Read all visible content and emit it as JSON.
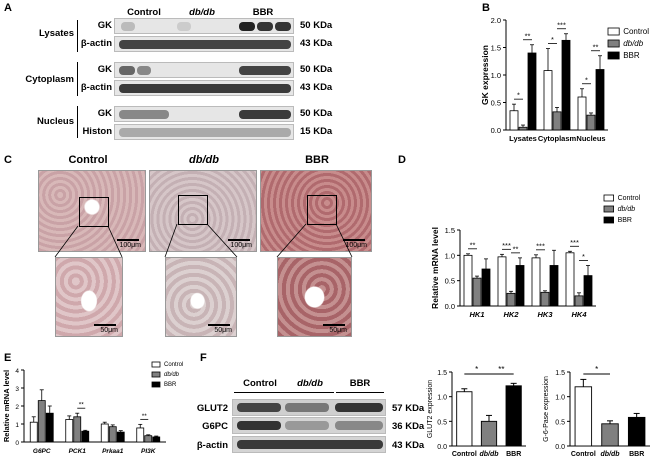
{
  "panel_letters": [
    "A",
    "B",
    "C",
    "D",
    "E",
    "F"
  ],
  "panelA": {
    "groups": [
      "Control",
      "db/db",
      "BBR"
    ],
    "sections": [
      {
        "name": "Lysates",
        "rows": [
          {
            "label": "GK",
            "mw": "50 KDa"
          },
          {
            "label": "β-actin",
            "mw": "43 KDa"
          }
        ]
      },
      {
        "name": "Cytoplasm",
        "rows": [
          {
            "label": "GK",
            "mw": "50 KDa"
          },
          {
            "label": "β-actin",
            "mw": "43 KDa"
          }
        ]
      },
      {
        "name": "Nucleus",
        "rows": [
          {
            "label": "GK",
            "mw": "50 KDa"
          },
          {
            "label": "Histon",
            "mw": "15 KDa"
          }
        ]
      }
    ]
  },
  "panelC": {
    "titles": [
      "Control",
      "db/db",
      "BBR"
    ],
    "scale_top": "100μm",
    "scale_bottom": "50μm"
  },
  "panelF": {
    "groups": [
      "Control",
      "db/db",
      "BBR"
    ],
    "rows": [
      {
        "label": "GLUT2",
        "mw": "57 KDa"
      },
      {
        "label": "G6PC",
        "mw": "36 KDa"
      },
      {
        "label": "β-actin",
        "mw": "43 KDa"
      }
    ]
  },
  "colors": {
    "control": "#ffffff",
    "dbdb": "#808080",
    "bbr": "#000000"
  },
  "chart_data": [
    {
      "id": "B",
      "type": "bar",
      "ylabel": "GK expression",
      "ylim": [
        0,
        2.0
      ],
      "yticks": [
        "0.0",
        "0.5",
        "1.0",
        "1.5",
        "2.0"
      ],
      "categories": [
        "Lysates",
        "Cytoplasm",
        "Nucleus"
      ],
      "series": [
        {
          "name": "Control",
          "values": [
            0.35,
            1.08,
            0.6
          ],
          "err": [
            0.12,
            0.4,
            0.15
          ]
        },
        {
          "name": "db/db",
          "values": [
            0.05,
            0.33,
            0.27
          ],
          "err": [
            0.04,
            0.08,
            0.04
          ]
        },
        {
          "name": "BBR",
          "values": [
            1.4,
            1.63,
            1.1
          ],
          "err": [
            0.15,
            0.12,
            0.25
          ]
        }
      ],
      "sig": [
        {
          "cat": 0,
          "from": 0,
          "to": 1,
          "text": "*"
        },
        {
          "cat": 0,
          "from": 1,
          "to": 2,
          "text": "**"
        },
        {
          "cat": 1,
          "from": 0,
          "to": 1,
          "text": "*"
        },
        {
          "cat": 1,
          "from": 1,
          "to": 2,
          "text": "***"
        },
        {
          "cat": 2,
          "from": 0,
          "to": 1,
          "text": "*"
        },
        {
          "cat": 2,
          "from": 1,
          "to": 2,
          "text": "**"
        }
      ],
      "legend": "right"
    },
    {
      "id": "D",
      "type": "bar",
      "ylabel": "Relative mRNA level",
      "ylim": [
        0,
        1.5
      ],
      "yticks": [
        "0.0",
        "0.5",
        "1.0",
        "1.5"
      ],
      "categories": [
        "HK1",
        "HK2",
        "HK3",
        "HK4"
      ],
      "series": [
        {
          "name": "Control",
          "values": [
            1.0,
            0.97,
            0.95,
            1.05
          ],
          "err": [
            0.03,
            0.05,
            0.06,
            0.03
          ]
        },
        {
          "name": "db/db",
          "values": [
            0.55,
            0.25,
            0.27,
            0.2
          ],
          "err": [
            0.04,
            0.04,
            0.03,
            0.06
          ]
        },
        {
          "name": "BBR",
          "values": [
            0.73,
            0.8,
            0.8,
            0.6
          ],
          "err": [
            0.2,
            0.15,
            0.3,
            0.2
          ]
        }
      ],
      "sig": [
        {
          "cat": 0,
          "from": 0,
          "to": 1,
          "text": "**"
        },
        {
          "cat": 1,
          "from": 0,
          "to": 1,
          "text": "***"
        },
        {
          "cat": 1,
          "from": 1,
          "to": 2,
          "text": "**"
        },
        {
          "cat": 2,
          "from": 0,
          "to": 1,
          "text": "***"
        },
        {
          "cat": 3,
          "from": 0,
          "to": 1,
          "text": "***"
        },
        {
          "cat": 3,
          "from": 1,
          "to": 2,
          "text": "*"
        }
      ],
      "legend": "top-right"
    },
    {
      "id": "E",
      "type": "bar",
      "ylabel": "Relative mRNA level",
      "ylim": [
        0,
        4
      ],
      "yticks": [
        "0",
        "1",
        "2",
        "3",
        "4"
      ],
      "categories": [
        "G6PC",
        "PCK1",
        "Prkaa1",
        "PI3K"
      ],
      "series": [
        {
          "name": "Control",
          "values": [
            1.1,
            1.25,
            1.0,
            0.78
          ],
          "err": [
            0.3,
            0.2,
            0.1,
            0.2
          ]
        },
        {
          "name": "db/db",
          "values": [
            2.3,
            1.4,
            0.85,
            0.35
          ],
          "err": [
            0.6,
            0.2,
            0.1,
            0.05
          ]
        },
        {
          "name": "BBR",
          "values": [
            1.6,
            0.6,
            0.55,
            0.28
          ],
          "err": [
            0.4,
            0.05,
            0.08,
            0.05
          ]
        }
      ],
      "sig": [
        {
          "cat": 1,
          "from": 1,
          "to": 2,
          "text": "**"
        },
        {
          "cat": 3,
          "from": 0,
          "to": 1,
          "text": "**"
        }
      ],
      "legend": "top-right"
    },
    {
      "id": "F1",
      "type": "bar",
      "ylabel": "GLUT2 expression",
      "ylim": [
        0,
        1.5
      ],
      "yticks": [
        "0.0",
        "0.5",
        "1.0",
        "1.5"
      ],
      "categories": [
        "Control",
        "db/db",
        "BBR"
      ],
      "values": [
        1.1,
        0.5,
        1.22
      ],
      "err": [
        0.06,
        0.12,
        0.05
      ],
      "sig": [
        {
          "from": 0,
          "to": 1,
          "text": "*"
        },
        {
          "from": 1,
          "to": 2,
          "text": "**"
        }
      ]
    },
    {
      "id": "F2",
      "type": "bar",
      "ylabel": "G-6-Pase expression",
      "ylim": [
        0,
        1.5
      ],
      "yticks": [
        "0.0",
        "0.5",
        "1.0",
        "1.5"
      ],
      "categories": [
        "Control",
        "db/db",
        "BBR"
      ],
      "values": [
        1.2,
        0.45,
        0.58
      ],
      "err": [
        0.15,
        0.06,
        0.08
      ],
      "sig": [
        {
          "from": 0,
          "to": 1,
          "text": "*"
        }
      ]
    }
  ]
}
